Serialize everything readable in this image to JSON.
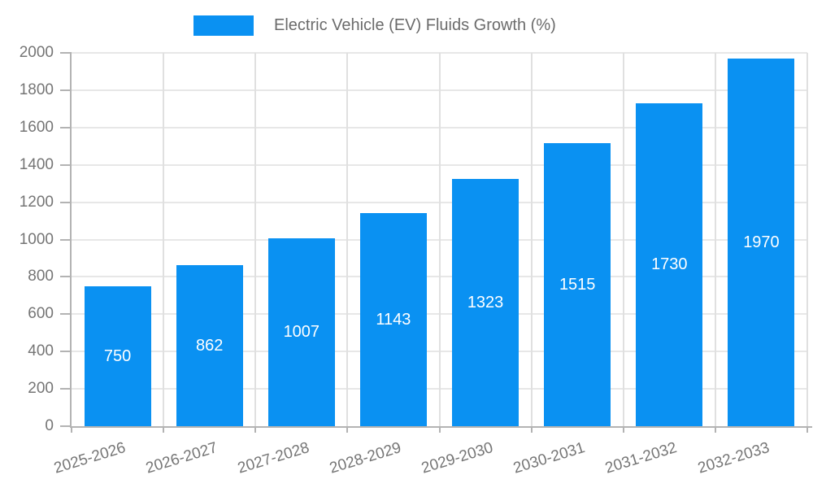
{
  "chart_data": {
    "type": "bar",
    "title": "Electric Vehicle (EV) Fluids Growth (%)",
    "legend": {
      "label": "Electric Vehicle (EV) Fluids Growth (%)",
      "position": "top-center"
    },
    "categories": [
      "2025-2026",
      "2026-2027",
      "2027-2028",
      "2028-2029",
      "2029-2030",
      "2030-2031",
      "2031-2032",
      "2032-2033"
    ],
    "values": [
      750,
      862,
      1007,
      1143,
      1323,
      1515,
      1730,
      1970
    ],
    "value_labels": [
      "750",
      "862",
      "1007",
      "1143",
      "1323",
      "1515",
      "1730",
      "1970"
    ],
    "value_label_position": "inside-center",
    "xlabel": "",
    "ylabel": "",
    "ylim": [
      0,
      2000
    ],
    "ytick_step": 200,
    "yticks": [
      0,
      200,
      400,
      600,
      800,
      1000,
      1200,
      1400,
      1600,
      1800,
      2000
    ],
    "grid": true,
    "xtick_label_rotation_deg": -17,
    "colors": {
      "bar": "#0a91f2",
      "axis": "#b3b3b3",
      "grid_horizontal": "#e7e7e7",
      "grid_vertical": "#e0e0e0",
      "tick_label": "#757575",
      "legend_text": "#6b6b6b",
      "value_label": "#ffffff",
      "background": "#ffffff"
    }
  }
}
